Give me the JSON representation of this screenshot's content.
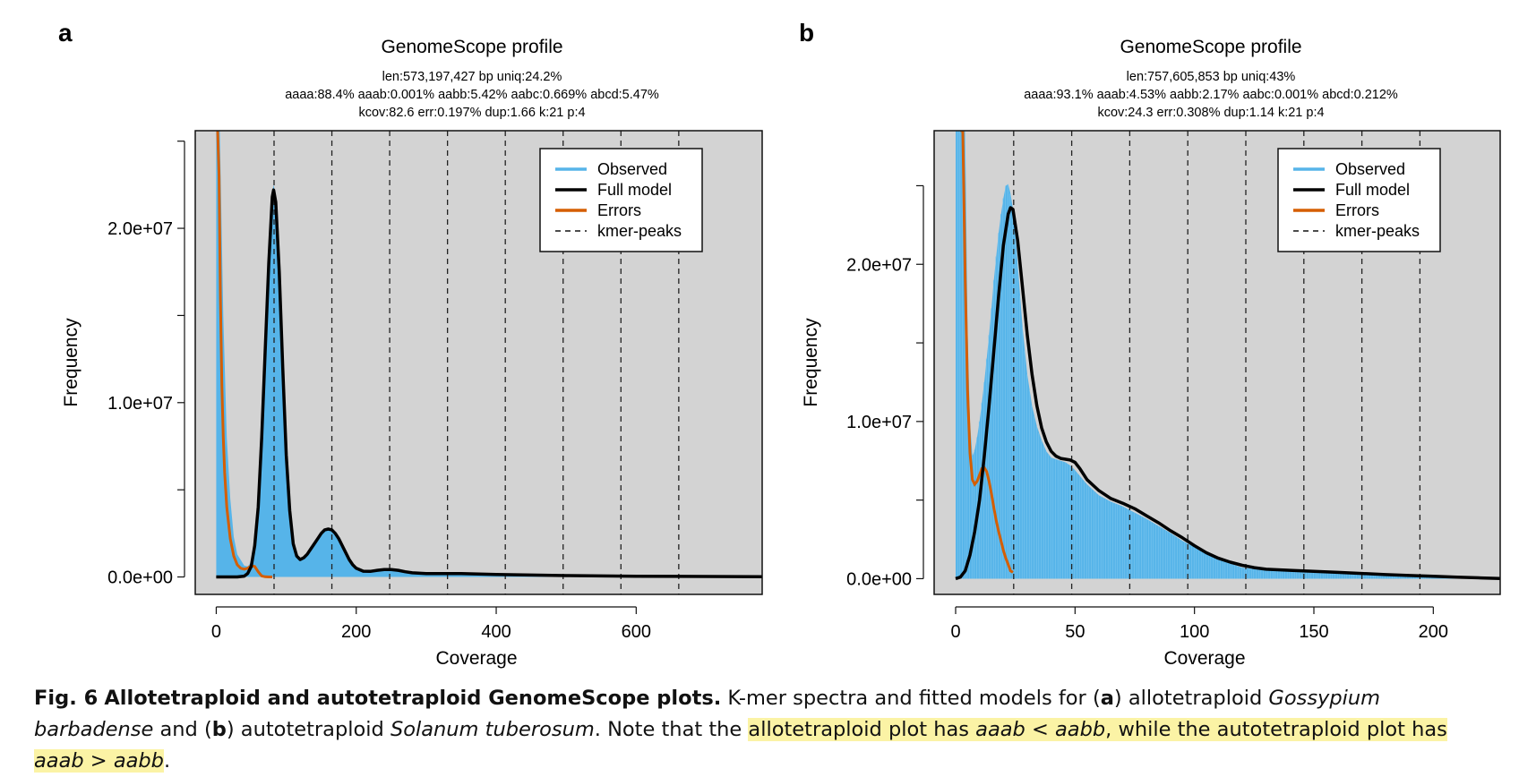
{
  "figure": {
    "panels": [
      {
        "letter": "a",
        "title": "GenomeScope profile",
        "stats": [
          "len:573,197,427 bp uniq:24.2%",
          "aaaa:88.4% aaab:0.001% aabb:5.42% aabc:0.669% abcd:5.47%",
          "kcov:82.6 err:0.197% dup:1.66 k:21 p:4"
        ]
      },
      {
        "letter": "b",
        "title": "GenomeScope profile",
        "stats": [
          "len:757,605,853 bp uniq:43%",
          "aaaa:93.1% aaab:4.53% aabb:2.17% aabc:0.001% abcd:0.212%",
          "kcov:24.3 err:0.308% dup:1.14 k:21 p:4"
        ]
      }
    ],
    "legend": [
      "Observed",
      "Full model",
      "Errors",
      "kmer-peaks"
    ],
    "colors": {
      "observed": "#56b4e9",
      "full_model": "#000000",
      "errors": "#d55e00",
      "plot_bg": "#d3d3d3",
      "highlight": "#fbf3a5"
    },
    "caption": {
      "label": "Fig. 6",
      "title": "Allotetraploid and autotetraploid GenomeScope plots.",
      "t1": " K-mer spectra and fitted models for (",
      "a": "a",
      "t2": ") allotetraploid ",
      "sp1": "Gossypium barbadense",
      "t3": " and (",
      "b": "b",
      "t4": ") autotetraploid ",
      "sp2": "Solanum tuberosum",
      "t5": ". Note that the ",
      "h1": "allotetraploid plot has ",
      "h_aaab1": "aaab",
      "h_lt": " < ",
      "h_aabb1": "aabb",
      "h2": ", while the autotetraploid plot has ",
      "h_aaab2": "aaab",
      "h_gt": " > ",
      "h_aabb2": "aabb",
      "t6": "."
    }
  },
  "chart_data": [
    {
      "type": "area",
      "title": "GenomeScope profile",
      "xlabel": "Coverage",
      "ylabel": "Frequency",
      "xlim": [
        -30,
        780
      ],
      "ylim": [
        -1000000,
        25600000
      ],
      "xticks": [
        0,
        200,
        400,
        600
      ],
      "yticks_labeled": [
        {
          "v": 0,
          "label": "0.0e+00"
        },
        {
          "v": 10000000,
          "label": "1.0e+07"
        },
        {
          "v": 20000000,
          "label": "2.0e+07"
        }
      ],
      "yticks_minor": [
        5000000,
        15000000,
        25000000
      ],
      "kmer_peaks": [
        82.6,
        165.2,
        247.8,
        330.4,
        413,
        495.6,
        578.2,
        660.8
      ],
      "legend_position": "top-right",
      "series": [
        {
          "name": "Observed",
          "color": "#56b4e9",
          "x": [
            0,
            2,
            5,
            10,
            15,
            20,
            25,
            30,
            40,
            45,
            50,
            55,
            60,
            65,
            70,
            75,
            80,
            82,
            85,
            90,
            95,
            100,
            105,
            110,
            115,
            120,
            125,
            130,
            135,
            140,
            145,
            150,
            155,
            160,
            165,
            170,
            175,
            180,
            185,
            190,
            195,
            200,
            210,
            220,
            230,
            240,
            250,
            260,
            270,
            280,
            300,
            350,
            400,
            450,
            500,
            600,
            780
          ],
          "y": [
            25600000,
            25600000,
            25600000,
            15000000,
            8000000,
            4500000,
            2300000,
            1300000,
            650000,
            600000,
            850000,
            1800000,
            4000000,
            8000000,
            13000000,
            18000000,
            22000000,
            22500000,
            21800000,
            18000000,
            12500000,
            7500000,
            4000000,
            2000000,
            1200000,
            1000000,
            1100000,
            1300000,
            1600000,
            1900000,
            2200000,
            2500000,
            2700000,
            2750000,
            2700000,
            2500000,
            2200000,
            1800000,
            1400000,
            1000000,
            700000,
            500000,
            350000,
            350000,
            400000,
            450000,
            450000,
            400000,
            320000,
            250000,
            200000,
            200000,
            150000,
            120000,
            90000,
            50000,
            20000
          ]
        },
        {
          "name": "Full model",
          "color": "#000000",
          "x": [
            0,
            30,
            40,
            45,
            50,
            55,
            60,
            65,
            70,
            75,
            80,
            82,
            85,
            90,
            95,
            100,
            105,
            110,
            115,
            120,
            125,
            130,
            135,
            140,
            145,
            150,
            155,
            160,
            165,
            170,
            175,
            180,
            185,
            190,
            195,
            200,
            210,
            220,
            230,
            240,
            250,
            260,
            270,
            280,
            300,
            350,
            400,
            450,
            500,
            600,
            780
          ],
          "y": [
            0,
            0,
            50000,
            200000,
            600000,
            1800000,
            4000000,
            8000000,
            13000000,
            18000000,
            21800000,
            22200000,
            21500000,
            17500000,
            12000000,
            7000000,
            3800000,
            1900000,
            1200000,
            1000000,
            1100000,
            1300000,
            1600000,
            1900000,
            2200000,
            2500000,
            2700000,
            2750000,
            2700000,
            2500000,
            2200000,
            1800000,
            1400000,
            1000000,
            700000,
            500000,
            330000,
            320000,
            380000,
            430000,
            430000,
            380000,
            300000,
            240000,
            190000,
            190000,
            140000,
            110000,
            80000,
            40000,
            15000
          ]
        },
        {
          "name": "Errors",
          "color": "#d55e00",
          "x": [
            2,
            4,
            6,
            8,
            10,
            12,
            15,
            20,
            25,
            30,
            35,
            40,
            45,
            50,
            55,
            60,
            65,
            70,
            75,
            80
          ],
          "y": [
            25600000,
            23000000,
            16000000,
            11000000,
            8000000,
            6000000,
            4000000,
            2200000,
            1200000,
            700000,
            500000,
            450000,
            500000,
            650000,
            600000,
            300000,
            60000,
            10000,
            0,
            0
          ]
        }
      ]
    },
    {
      "type": "area",
      "title": "GenomeScope profile",
      "xlabel": "Coverage",
      "ylabel": "Frequency",
      "xlim": [
        -9,
        228
      ],
      "ylim": [
        -1000000,
        28500000
      ],
      "xticks": [
        0,
        50,
        100,
        150,
        200
      ],
      "yticks_labeled": [
        {
          "v": 0,
          "label": "0.0e+00"
        },
        {
          "v": 10000000,
          "label": "1.0e+07"
        },
        {
          "v": 20000000,
          "label": "2.0e+07"
        }
      ],
      "yticks_minor": [
        5000000,
        15000000,
        25000000
      ],
      "kmer_peaks": [
        24.3,
        48.6,
        72.9,
        97.2,
        121.5,
        145.8,
        170.1,
        194.4
      ],
      "legend_position": "top-right",
      "series": [
        {
          "name": "Observed",
          "color": "#56b4e9",
          "x": [
            0,
            1,
            2,
            3,
            4,
            5,
            6,
            7,
            8,
            9,
            10,
            11,
            12,
            13,
            14,
            15,
            16,
            17,
            18,
            19,
            20,
            21,
            22,
            23,
            24,
            25,
            26,
            27,
            28,
            29,
            30,
            32,
            34,
            36,
            38,
            40,
            42,
            44,
            46,
            48,
            50,
            55,
            60,
            65,
            70,
            75,
            80,
            85,
            90,
            95,
            100,
            105,
            110,
            115,
            120,
            130,
            140,
            150,
            160,
            170,
            180,
            190,
            200,
            210,
            220,
            228
          ],
          "y": [
            28500000,
            28500000,
            28500000,
            28500000,
            28500000,
            16000000,
            10000000,
            7800000,
            8200000,
            9000000,
            10000000,
            11200000,
            12500000,
            14000000,
            15500000,
            17200000,
            19000000,
            20500000,
            22000000,
            23200000,
            24200000,
            25000000,
            25100000,
            24500000,
            23500000,
            22000000,
            20000000,
            18000000,
            16000000,
            14500000,
            13000000,
            11000000,
            9700000,
            8800000,
            8100000,
            7700000,
            7600000,
            7500000,
            7400000,
            7200000,
            6900000,
            6000000,
            5300000,
            4900000,
            4600000,
            4200000,
            3800000,
            3350000,
            2900000,
            2400000,
            2000000,
            1600000,
            1250000,
            950000,
            700000,
            530000,
            450000,
            380000,
            320000,
            270000,
            220000,
            170000,
            120000,
            80000,
            40000,
            10000
          ]
        },
        {
          "name": "Full model",
          "color": "#000000",
          "x": [
            0,
            2,
            4,
            6,
            8,
            10,
            12,
            14,
            16,
            18,
            20,
            22,
            23,
            24,
            26,
            28,
            30,
            32,
            34,
            36,
            38,
            40,
            42,
            44,
            46,
            48,
            50,
            52,
            55,
            60,
            65,
            70,
            75,
            80,
            85,
            90,
            95,
            100,
            105,
            110,
            115,
            120,
            125,
            130,
            140,
            150,
            160,
            170,
            180,
            190,
            200,
            210,
            220,
            228
          ],
          "y": [
            0,
            100000,
            500000,
            1500000,
            3000000,
            5000000,
            7800000,
            11000000,
            14500000,
            18000000,
            21200000,
            23200000,
            23600000,
            23500000,
            21500000,
            18500000,
            15500000,
            13000000,
            11000000,
            9600000,
            8700000,
            8100000,
            7800000,
            7650000,
            7600000,
            7550000,
            7400000,
            7000000,
            6300000,
            5600000,
            5100000,
            4800000,
            4450000,
            4000000,
            3550000,
            3050000,
            2600000,
            2100000,
            1650000,
            1300000,
            1050000,
            850000,
            700000,
            600000,
            530000,
            470000,
            400000,
            330000,
            260000,
            200000,
            150000,
            100000,
            50000,
            10000
          ]
        },
        {
          "name": "Errors",
          "color": "#d55e00",
          "x": [
            2,
            3,
            4,
            5,
            6,
            7,
            8,
            9,
            10,
            11,
            12,
            13,
            14,
            15,
            16,
            17,
            18,
            19,
            20,
            21,
            22,
            23,
            24
          ],
          "y": [
            28500000,
            28500000,
            19000000,
            12000000,
            8000000,
            6300000,
            6000000,
            6200000,
            6600000,
            7000000,
            7050000,
            6800000,
            6200000,
            5400000,
            4500000,
            3700000,
            3000000,
            2400000,
            1800000,
            1300000,
            900000,
            500000,
            400000
          ]
        }
      ]
    }
  ]
}
